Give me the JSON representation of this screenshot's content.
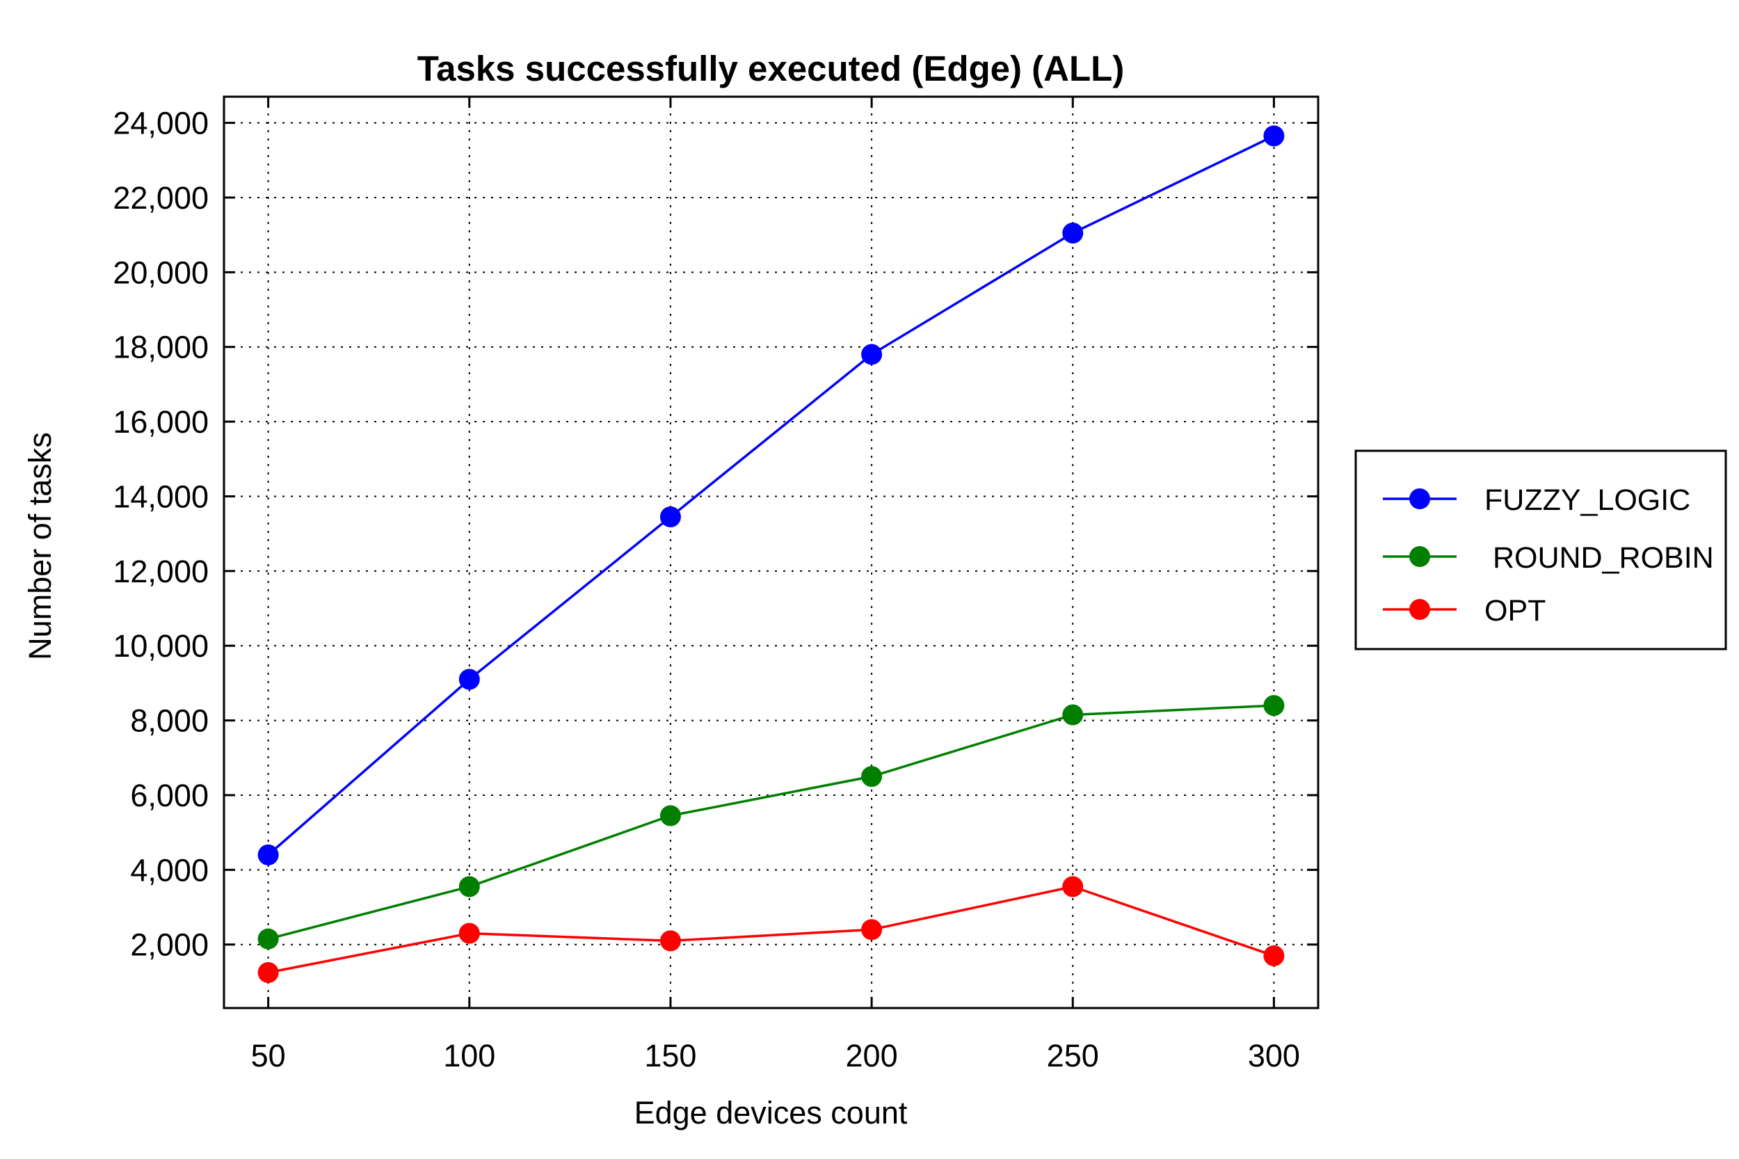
{
  "chart_data": {
    "type": "line",
    "title": "Tasks successfully executed (Edge) (ALL)",
    "xlabel": "Edge devices count",
    "ylabel": "Number of tasks",
    "x": [
      50,
      100,
      150,
      200,
      250,
      300
    ],
    "x_tick_labels": [
      "50",
      "100",
      "150",
      "200",
      "250",
      "300"
    ],
    "y_ticks": [
      2000,
      4000,
      6000,
      8000,
      10000,
      12000,
      14000,
      16000,
      18000,
      20000,
      22000,
      24000
    ],
    "y_tick_labels": [
      "2,000",
      "4,000",
      "6,000",
      "8,000",
      "10,000",
      "12,000",
      "14,000",
      "16,000",
      "18,000",
      "20,000",
      "22,000",
      "24,000"
    ],
    "xlim": [
      39,
      311
    ],
    "ylim": [
      300,
      24700
    ],
    "grid": true,
    "legend_position": "right",
    "series": [
      {
        "name": "FUZZY_LOGIC",
        "color": "#0000ff",
        "values": [
          4400,
          9100,
          13450,
          17800,
          21050,
          23650
        ]
      },
      {
        "name": " ROUND_ROBIN",
        "color": "#007f00",
        "values": [
          2150,
          3550,
          5450,
          6500,
          8150,
          8400
        ]
      },
      {
        "name": "OPT",
        "color": "#ff0000",
        "values": [
          1250,
          2300,
          2100,
          2400,
          3550,
          1700
        ]
      }
    ]
  }
}
